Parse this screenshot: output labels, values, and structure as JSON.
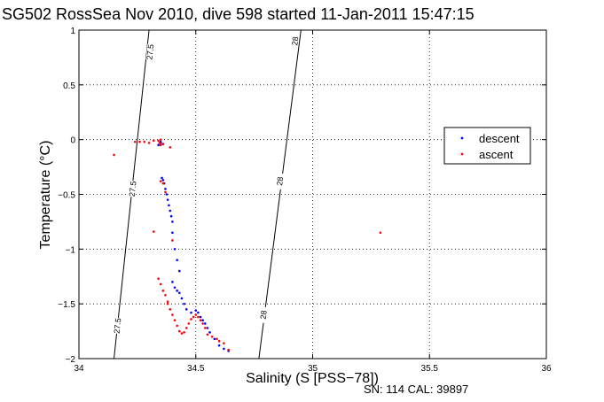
{
  "chart_data": {
    "type": "scatter",
    "title": "SG502 RossSea Nov 2010, dive 598 started 11-Jan-2011 15:47:15",
    "xlabel": "Salinity (S [PSS−78])",
    "ylabel": "Temperature (°C)",
    "xlim": [
      34,
      36
    ],
    "ylim": [
      -2,
      1
    ],
    "x_ticks": [
      "34",
      "34.5",
      "35",
      "35.5",
      "36"
    ],
    "y_ticks": [
      "1",
      "0.5",
      "0",
      "−0.5",
      "−1",
      "−1.5",
      "−2"
    ],
    "grid": true,
    "legend_position": "right",
    "colors": {
      "descent": "#0000ff",
      "ascent": "#ff0000",
      "contour": "#000000"
    },
    "contours": [
      {
        "label": "27.5",
        "line": [
          [
            34.15,
            -2.0
          ],
          [
            34.3,
            1.0
          ]
        ],
        "labels_at": [
          [
            34.165,
            -1.7
          ],
          [
            34.23,
            -0.45
          ],
          [
            34.305,
            0.8
          ]
        ]
      },
      {
        "label": "28",
        "line": [
          [
            34.77,
            -2.0
          ],
          [
            34.95,
            1.0
          ]
        ],
        "labels_at": [
          [
            34.79,
            -1.6
          ],
          [
            34.86,
            -0.38
          ],
          [
            34.925,
            0.9
          ]
        ]
      }
    ],
    "series": [
      {
        "name": "descent",
        "points": [
          [
            34.34,
            -0.05
          ],
          [
            34.35,
            -0.02
          ],
          [
            34.36,
            -0.04
          ],
          [
            34.35,
            -0.03
          ],
          [
            34.355,
            -0.35
          ],
          [
            34.36,
            -0.37
          ],
          [
            34.365,
            -0.4
          ],
          [
            34.37,
            -0.45
          ],
          [
            34.375,
            -0.5
          ],
          [
            34.38,
            -0.55
          ],
          [
            34.385,
            -0.6
          ],
          [
            34.39,
            -0.65
          ],
          [
            34.395,
            -0.7
          ],
          [
            34.4,
            -0.75
          ],
          [
            34.4,
            -0.85
          ],
          [
            34.41,
            -1.0
          ],
          [
            34.42,
            -1.1
          ],
          [
            34.43,
            -1.2
          ],
          [
            34.4,
            -1.3
          ],
          [
            34.41,
            -1.35
          ],
          [
            34.42,
            -1.38
          ],
          [
            34.43,
            -1.4
          ],
          [
            34.44,
            -1.45
          ],
          [
            34.45,
            -1.5
          ],
          [
            34.46,
            -1.55
          ],
          [
            34.48,
            -1.58
          ],
          [
            34.5,
            -1.56
          ],
          [
            34.51,
            -1.58
          ],
          [
            34.52,
            -1.62
          ],
          [
            34.53,
            -1.65
          ],
          [
            34.54,
            -1.68
          ],
          [
            34.55,
            -1.72
          ],
          [
            34.56,
            -1.76
          ],
          [
            34.58,
            -1.82
          ],
          [
            34.6,
            -1.88
          ],
          [
            34.62,
            -1.91
          ],
          [
            34.64,
            -1.93
          ]
        ]
      },
      {
        "name": "ascent",
        "points": [
          [
            34.15,
            -0.14
          ],
          [
            34.24,
            -0.02
          ],
          [
            34.26,
            -0.02
          ],
          [
            34.28,
            -0.02
          ],
          [
            34.3,
            -0.03
          ],
          [
            34.32,
            -0.01
          ],
          [
            34.34,
            -0.01
          ],
          [
            34.345,
            -0.03
          ],
          [
            34.35,
            -0.05
          ],
          [
            34.36,
            -0.04
          ],
          [
            34.35,
            0.0
          ],
          [
            34.39,
            -0.07
          ],
          [
            34.35,
            -0.38
          ],
          [
            34.36,
            -0.4
          ],
          [
            34.37,
            -0.48
          ],
          [
            34.32,
            -0.84
          ],
          [
            34.4,
            -0.92
          ],
          [
            34.34,
            -1.27
          ],
          [
            34.35,
            -1.32
          ],
          [
            34.36,
            -1.38
          ],
          [
            34.37,
            -1.42
          ],
          [
            34.38,
            -1.48
          ],
          [
            34.38,
            -1.5
          ],
          [
            34.39,
            -1.55
          ],
          [
            34.4,
            -1.6
          ],
          [
            34.41,
            -1.65
          ],
          [
            34.42,
            -1.7
          ],
          [
            34.43,
            -1.75
          ],
          [
            34.44,
            -1.77
          ],
          [
            34.45,
            -1.76
          ],
          [
            34.46,
            -1.72
          ],
          [
            34.47,
            -1.68
          ],
          [
            34.48,
            -1.64
          ],
          [
            34.49,
            -1.62
          ],
          [
            34.5,
            -1.6
          ],
          [
            34.51,
            -1.62
          ],
          [
            34.52,
            -1.65
          ],
          [
            34.53,
            -1.68
          ],
          [
            34.54,
            -1.72
          ],
          [
            34.55,
            -1.78
          ],
          [
            34.57,
            -1.8
          ],
          [
            34.59,
            -1.82
          ],
          [
            34.6,
            -1.84
          ],
          [
            34.62,
            -1.86
          ],
          [
            34.64,
            -1.92
          ],
          [
            35.29,
            -0.85
          ]
        ]
      }
    ],
    "footer": "SN: 114  CAL: 39897"
  }
}
